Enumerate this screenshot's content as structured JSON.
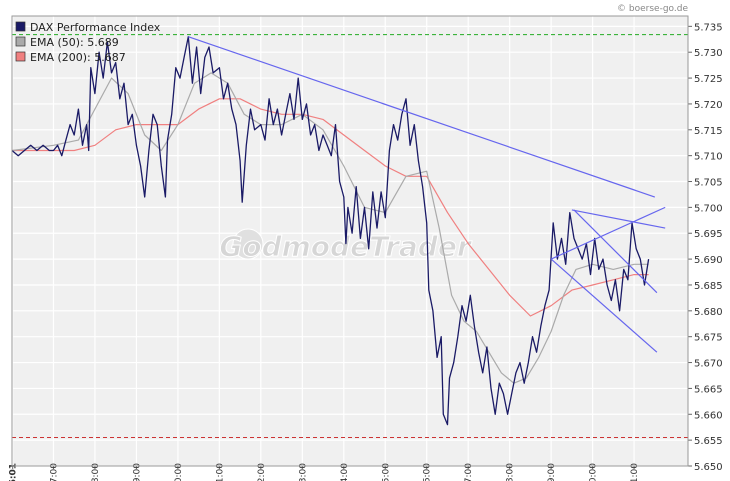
{
  "credit": "© boerse-go.de",
  "watermark": "GodmodeTrader",
  "chart_data": {
    "type": "line",
    "ylim": [
      5.65,
      5.737
    ],
    "xlim": [
      6.0,
      22.3
    ],
    "yticks": [
      "5.650",
      "5.655",
      "5.660",
      "5.665",
      "5.670",
      "5.675",
      "5.680",
      "5.685",
      "5.690",
      "5.695",
      "5.700",
      "5.705",
      "5.710",
      "5.715",
      "5.720",
      "5.725",
      "5.730",
      "5.735"
    ],
    "xticks": [
      {
        "t": 6.0167,
        "label": "06:01",
        "bold": true
      },
      {
        "t": 7,
        "label": "07:00",
        "bold": false
      },
      {
        "t": 8,
        "label": "08:00",
        "bold": false
      },
      {
        "t": 9,
        "label": "09:00",
        "bold": false
      },
      {
        "t": 10,
        "label": "10:00",
        "bold": false
      },
      {
        "t": 11,
        "label": "11:00",
        "bold": false
      },
      {
        "t": 12,
        "label": "12:00",
        "bold": false
      },
      {
        "t": 13,
        "label": "13:00",
        "bold": false
      },
      {
        "t": 14,
        "label": "14:00",
        "bold": false
      },
      {
        "t": 15,
        "label": "15:00",
        "bold": false
      },
      {
        "t": 16,
        "label": "16:00",
        "bold": false
      },
      {
        "t": 17,
        "label": "17:00",
        "bold": false
      },
      {
        "t": 18,
        "label": "18:00",
        "bold": false
      },
      {
        "t": 19,
        "label": "19:00",
        "bold": false
      },
      {
        "t": 20,
        "label": "20:00",
        "bold": false
      },
      {
        "t": 21,
        "label": "21:00",
        "bold": false
      }
    ],
    "legend": [
      {
        "label": "DAX Performance Index",
        "color": "#1a1a66"
      },
      {
        "label": "EMA (50): 5.689",
        "color": "#aaaaaa"
      },
      {
        "label": "EMA (200): 5.687",
        "color": "#f08080"
      }
    ],
    "hlines": [
      {
        "y": 5.7334,
        "color": "#22aa22"
      },
      {
        "y": 5.6555,
        "color": "#cc3333"
      }
    ],
    "series": [
      {
        "color": "#1a1a66",
        "points": [
          [
            6.0,
            5.711
          ],
          [
            6.15,
            5.71
          ],
          [
            6.3,
            5.711
          ],
          [
            6.45,
            5.712
          ],
          [
            6.6,
            5.711
          ],
          [
            6.75,
            5.712
          ],
          [
            6.9,
            5.711
          ],
          [
            7.0,
            5.711
          ],
          [
            7.1,
            5.712
          ],
          [
            7.2,
            5.71
          ],
          [
            7.3,
            5.713
          ],
          [
            7.4,
            5.716
          ],
          [
            7.5,
            5.714
          ],
          [
            7.6,
            5.719
          ],
          [
            7.7,
            5.712
          ],
          [
            7.8,
            5.716
          ],
          [
            7.85,
            5.711
          ],
          [
            7.9,
            5.727
          ],
          [
            8.0,
            5.722
          ],
          [
            8.1,
            5.73
          ],
          [
            8.2,
            5.725
          ],
          [
            8.3,
            5.732
          ],
          [
            8.4,
            5.726
          ],
          [
            8.5,
            5.728
          ],
          [
            8.6,
            5.721
          ],
          [
            8.7,
            5.724
          ],
          [
            8.8,
            5.716
          ],
          [
            8.9,
            5.718
          ],
          [
            9.0,
            5.712
          ],
          [
            9.1,
            5.708
          ],
          [
            9.2,
            5.702
          ],
          [
            9.3,
            5.711
          ],
          [
            9.4,
            5.718
          ],
          [
            9.5,
            5.716
          ],
          [
            9.6,
            5.708
          ],
          [
            9.7,
            5.702
          ],
          [
            9.75,
            5.713
          ],
          [
            9.85,
            5.718
          ],
          [
            9.95,
            5.727
          ],
          [
            10.05,
            5.725
          ],
          [
            10.15,
            5.729
          ],
          [
            10.25,
            5.733
          ],
          [
            10.35,
            5.724
          ],
          [
            10.45,
            5.731
          ],
          [
            10.55,
            5.722
          ],
          [
            10.65,
            5.729
          ],
          [
            10.75,
            5.731
          ],
          [
            10.85,
            5.726
          ],
          [
            11.0,
            5.727
          ],
          [
            11.1,
            5.721
          ],
          [
            11.2,
            5.724
          ],
          [
            11.3,
            5.719
          ],
          [
            11.4,
            5.716
          ],
          [
            11.5,
            5.709
          ],
          [
            11.55,
            5.701
          ],
          [
            11.65,
            5.712
          ],
          [
            11.75,
            5.719
          ],
          [
            11.85,
            5.715
          ],
          [
            12.0,
            5.716
          ],
          [
            12.1,
            5.713
          ],
          [
            12.2,
            5.721
          ],
          [
            12.3,
            5.716
          ],
          [
            12.4,
            5.719
          ],
          [
            12.5,
            5.714
          ],
          [
            12.6,
            5.718
          ],
          [
            12.7,
            5.722
          ],
          [
            12.8,
            5.717
          ],
          [
            12.9,
            5.725
          ],
          [
            13.0,
            5.717
          ],
          [
            13.1,
            5.72
          ],
          [
            13.2,
            5.714
          ],
          [
            13.3,
            5.716
          ],
          [
            13.4,
            5.711
          ],
          [
            13.5,
            5.714
          ],
          [
            13.6,
            5.712
          ],
          [
            13.7,
            5.71
          ],
          [
            13.8,
            5.716
          ],
          [
            13.9,
            5.705
          ],
          [
            14.0,
            5.702
          ],
          [
            14.05,
            5.693
          ],
          [
            14.1,
            5.7
          ],
          [
            14.2,
            5.695
          ],
          [
            14.3,
            5.704
          ],
          [
            14.4,
            5.694
          ],
          [
            14.5,
            5.7
          ],
          [
            14.6,
            5.692
          ],
          [
            14.7,
            5.703
          ],
          [
            14.8,
            5.696
          ],
          [
            14.9,
            5.703
          ],
          [
            15.0,
            5.698
          ],
          [
            15.1,
            5.711
          ],
          [
            15.2,
            5.716
          ],
          [
            15.3,
            5.713
          ],
          [
            15.4,
            5.718
          ],
          [
            15.5,
            5.721
          ],
          [
            15.6,
            5.712
          ],
          [
            15.7,
            5.716
          ],
          [
            15.8,
            5.709
          ],
          [
            15.9,
            5.704
          ],
          [
            16.0,
            5.697
          ],
          [
            16.05,
            5.684
          ],
          [
            16.15,
            5.68
          ],
          [
            16.25,
            5.671
          ],
          [
            16.35,
            5.675
          ],
          [
            16.4,
            5.66
          ],
          [
            16.5,
            5.658
          ],
          [
            16.55,
            5.667
          ],
          [
            16.65,
            5.67
          ],
          [
            16.75,
            5.675
          ],
          [
            16.85,
            5.681
          ],
          [
            16.95,
            5.678
          ],
          [
            17.05,
            5.683
          ],
          [
            17.15,
            5.677
          ],
          [
            17.25,
            5.672
          ],
          [
            17.35,
            5.668
          ],
          [
            17.45,
            5.673
          ],
          [
            17.55,
            5.665
          ],
          [
            17.65,
            5.66
          ],
          [
            17.75,
            5.666
          ],
          [
            17.85,
            5.664
          ],
          [
            17.95,
            5.66
          ],
          [
            18.05,
            5.664
          ],
          [
            18.15,
            5.668
          ],
          [
            18.25,
            5.67
          ],
          [
            18.35,
            5.666
          ],
          [
            18.45,
            5.67
          ],
          [
            18.55,
            5.675
          ],
          [
            18.65,
            5.672
          ],
          [
            18.75,
            5.677
          ],
          [
            18.85,
            5.681
          ],
          [
            18.95,
            5.684
          ],
          [
            19.05,
            5.697
          ],
          [
            19.15,
            5.69
          ],
          [
            19.25,
            5.694
          ],
          [
            19.35,
            5.689
          ],
          [
            19.45,
            5.699
          ],
          [
            19.55,
            5.694
          ],
          [
            19.65,
            5.692
          ],
          [
            19.75,
            5.69
          ],
          [
            19.85,
            5.693
          ],
          [
            19.95,
            5.687
          ],
          [
            20.05,
            5.694
          ],
          [
            20.15,
            5.688
          ],
          [
            20.25,
            5.69
          ],
          [
            20.35,
            5.685
          ],
          [
            20.45,
            5.682
          ],
          [
            20.55,
            5.686
          ],
          [
            20.65,
            5.68
          ],
          [
            20.75,
            5.688
          ],
          [
            20.85,
            5.686
          ],
          [
            20.95,
            5.697
          ],
          [
            21.05,
            5.692
          ],
          [
            21.15,
            5.69
          ],
          [
            21.25,
            5.685
          ],
          [
            21.35,
            5.69
          ]
        ]
      },
      {
        "color": "#aaaaaa",
        "points": [
          [
            6.0,
            5.711
          ],
          [
            7.0,
            5.712
          ],
          [
            7.6,
            5.713
          ],
          [
            8.0,
            5.719
          ],
          [
            8.4,
            5.725
          ],
          [
            8.8,
            5.722
          ],
          [
            9.2,
            5.714
          ],
          [
            9.6,
            5.711
          ],
          [
            10.0,
            5.716
          ],
          [
            10.4,
            5.724
          ],
          [
            10.8,
            5.726
          ],
          [
            11.2,
            5.724
          ],
          [
            11.6,
            5.718
          ],
          [
            12.0,
            5.716
          ],
          [
            12.5,
            5.716
          ],
          [
            13.0,
            5.718
          ],
          [
            13.5,
            5.715
          ],
          [
            14.0,
            5.708
          ],
          [
            14.5,
            5.7
          ],
          [
            15.0,
            5.699
          ],
          [
            15.5,
            5.706
          ],
          [
            16.0,
            5.707
          ],
          [
            16.3,
            5.696
          ],
          [
            16.6,
            5.683
          ],
          [
            16.9,
            5.678
          ],
          [
            17.2,
            5.676
          ],
          [
            17.5,
            5.672
          ],
          [
            17.8,
            5.668
          ],
          [
            18.1,
            5.666
          ],
          [
            18.4,
            5.667
          ],
          [
            18.7,
            5.671
          ],
          [
            19.0,
            5.676
          ],
          [
            19.3,
            5.683
          ],
          [
            19.6,
            5.688
          ],
          [
            20.0,
            5.689
          ],
          [
            20.5,
            5.688
          ],
          [
            21.0,
            5.689
          ],
          [
            21.35,
            5.689
          ]
        ]
      },
      {
        "color": "#f08080",
        "points": [
          [
            6.0,
            5.711
          ],
          [
            7.5,
            5.711
          ],
          [
            8.0,
            5.712
          ],
          [
            8.5,
            5.715
          ],
          [
            9.0,
            5.716
          ],
          [
            9.5,
            5.716
          ],
          [
            10.0,
            5.716
          ],
          [
            10.5,
            5.719
          ],
          [
            11.0,
            5.721
          ],
          [
            11.5,
            5.721
          ],
          [
            12.0,
            5.719
          ],
          [
            12.5,
            5.718
          ],
          [
            13.0,
            5.718
          ],
          [
            13.5,
            5.717
          ],
          [
            14.0,
            5.714
          ],
          [
            14.5,
            5.711
          ],
          [
            15.0,
            5.708
          ],
          [
            15.5,
            5.706
          ],
          [
            16.0,
            5.706
          ],
          [
            16.5,
            5.699
          ],
          [
            17.0,
            5.693
          ],
          [
            17.5,
            5.688
          ],
          [
            18.0,
            5.683
          ],
          [
            18.5,
            5.679
          ],
          [
            19.0,
            5.681
          ],
          [
            19.5,
            5.684
          ],
          [
            20.0,
            5.685
          ],
          [
            20.5,
            5.686
          ],
          [
            21.0,
            5.687
          ],
          [
            21.35,
            5.687
          ]
        ]
      }
    ],
    "trendlines": [
      {
        "color": "#6666ee",
        "from": [
          10.25,
          5.733
        ],
        "to": [
          21.5,
          5.702
        ]
      },
      {
        "color": "#6666ee",
        "from": [
          19.0,
          5.69
        ],
        "to": [
          21.75,
          5.7
        ]
      },
      {
        "color": "#6666ee",
        "from": [
          19.5,
          5.6995
        ],
        "to": [
          21.75,
          5.696
        ]
      },
      {
        "color": "#6666ee",
        "from": [
          19.55,
          5.6995
        ],
        "to": [
          21.55,
          5.6835
        ]
      },
      {
        "color": "#6666ee",
        "from": [
          19.0,
          5.69
        ],
        "to": [
          21.55,
          5.672
        ]
      }
    ]
  }
}
